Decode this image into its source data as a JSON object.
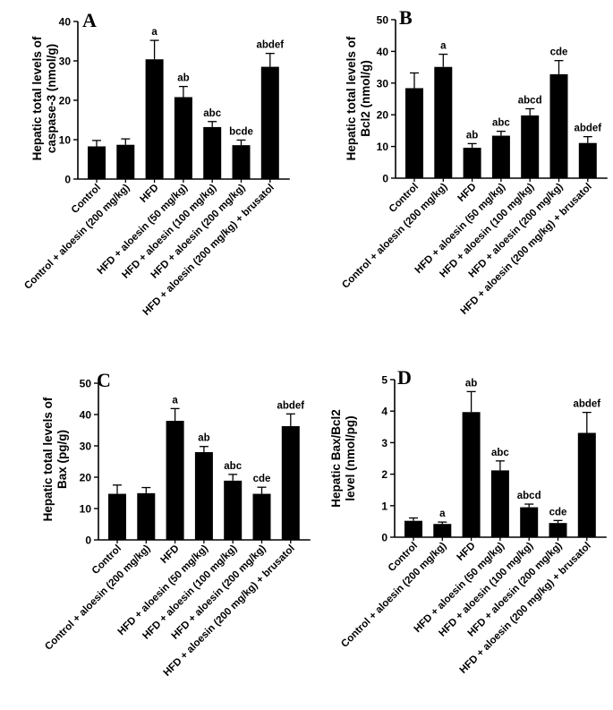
{
  "figure": {
    "categories": [
      "Control",
      "Control + aloesin (200 mg/kg)",
      "HFD",
      "HFD + aloesin (50 mg/kg)",
      "HFD + aloesin (100 mg/kg)",
      "HFD + aloesin (200 mg/kg)",
      "HFD + aloesin (200 mg/kg) + brusatol"
    ]
  },
  "chart_data": [
    {
      "type": "bar",
      "panel": "A",
      "ylabel": [
        "Hepatic total levels of",
        "caspase-3 (nmol/g)"
      ],
      "ylim": [
        0,
        40
      ],
      "yticks": [
        0,
        10,
        20,
        30,
        40
      ],
      "categories": [
        "Control",
        "Control + aloesin (200 mg/kg)",
        "HFD",
        "HFD + aloesin (50 mg/kg)",
        "HFD + aloesin (100 mg/kg)",
        "HFD + aloesin (200 mg/kg)",
        "HFD + aloesin (200 mg/kg) + brusatol"
      ],
      "values": [
        8.3,
        8.7,
        30.4,
        20.8,
        13.2,
        8.6,
        28.5
      ],
      "errors": [
        1.5,
        1.5,
        4.8,
        2.7,
        1.4,
        1.3,
        3.4
      ],
      "significance": [
        "",
        "",
        "a",
        "ab",
        "abc",
        "bcde",
        "abdef"
      ]
    },
    {
      "type": "bar",
      "panel": "B",
      "ylabel": [
        "Hepatic total levels of",
        "Bcl2 (nmol/g)"
      ],
      "ylim": [
        0,
        50
      ],
      "yticks": [
        0,
        10,
        20,
        30,
        40,
        50
      ],
      "categories": [
        "Control",
        "Control + aloesin (200 mg/kg)",
        "HFD",
        "HFD + aloesin (50 mg/kg)",
        "HFD + aloesin (100 mg/kg)",
        "HFD + aloesin (200 mg/kg)",
        "HFD + aloesin (200 mg/kg) + brusatol"
      ],
      "values": [
        28.4,
        35.1,
        9.6,
        13.4,
        19.8,
        32.8,
        11.1
      ],
      "errors": [
        4.8,
        4.0,
        1.3,
        1.4,
        2.1,
        4.3,
        2.0
      ],
      "significance": [
        "",
        "a",
        "ab",
        "abc",
        "abcd",
        "cde",
        "abdef"
      ]
    },
    {
      "type": "bar",
      "panel": "C",
      "ylabel": [
        "Hepatic total levels of",
        "Bax (pg/g)"
      ],
      "ylim": [
        0,
        50
      ],
      "yticks": [
        0,
        10,
        20,
        30,
        40,
        50
      ],
      "categories": [
        "Control",
        "Control + aloesin (200 mg/kg)",
        "HFD",
        "HFD + aloesin (50 mg/kg)",
        "HFD + aloesin (100 mg/kg)",
        "HFD + aloesin (200 mg/kg)",
        "HFD + aloesin (200 mg/kg) + brusatol"
      ],
      "values": [
        14.7,
        14.9,
        38.0,
        28.0,
        18.9,
        14.7,
        36.3
      ],
      "errors": [
        2.8,
        1.8,
        3.9,
        1.8,
        2.0,
        2.1,
        3.9
      ],
      "significance": [
        "",
        "",
        "a",
        "ab",
        "abc",
        "cde",
        "abdef"
      ]
    },
    {
      "type": "bar",
      "panel": "D",
      "ylabel": [
        "Hepatic Bax/Bcl2",
        "level (nmol/pg)"
      ],
      "ylim": [
        0,
        5
      ],
      "yticks": [
        0,
        1,
        2,
        3,
        4,
        5
      ],
      "categories": [
        "Control",
        "Control + aloesin (200 mg/kg)",
        "HFD",
        "HFD + aloesin (50 mg/kg)",
        "HFD + aloesin (100 mg/kg)",
        "HFD + aloesin (200 mg/kg)",
        "HFD + aloesin (200 mg/kg) + brusatol"
      ],
      "values": [
        0.52,
        0.42,
        3.97,
        2.12,
        0.95,
        0.45,
        3.31
      ],
      "errors": [
        0.09,
        0.06,
        0.65,
        0.3,
        0.1,
        0.08,
        0.65
      ],
      "significance": [
        "",
        "a",
        "ab",
        "abc",
        "abcd",
        "cde",
        "abdef"
      ]
    }
  ]
}
